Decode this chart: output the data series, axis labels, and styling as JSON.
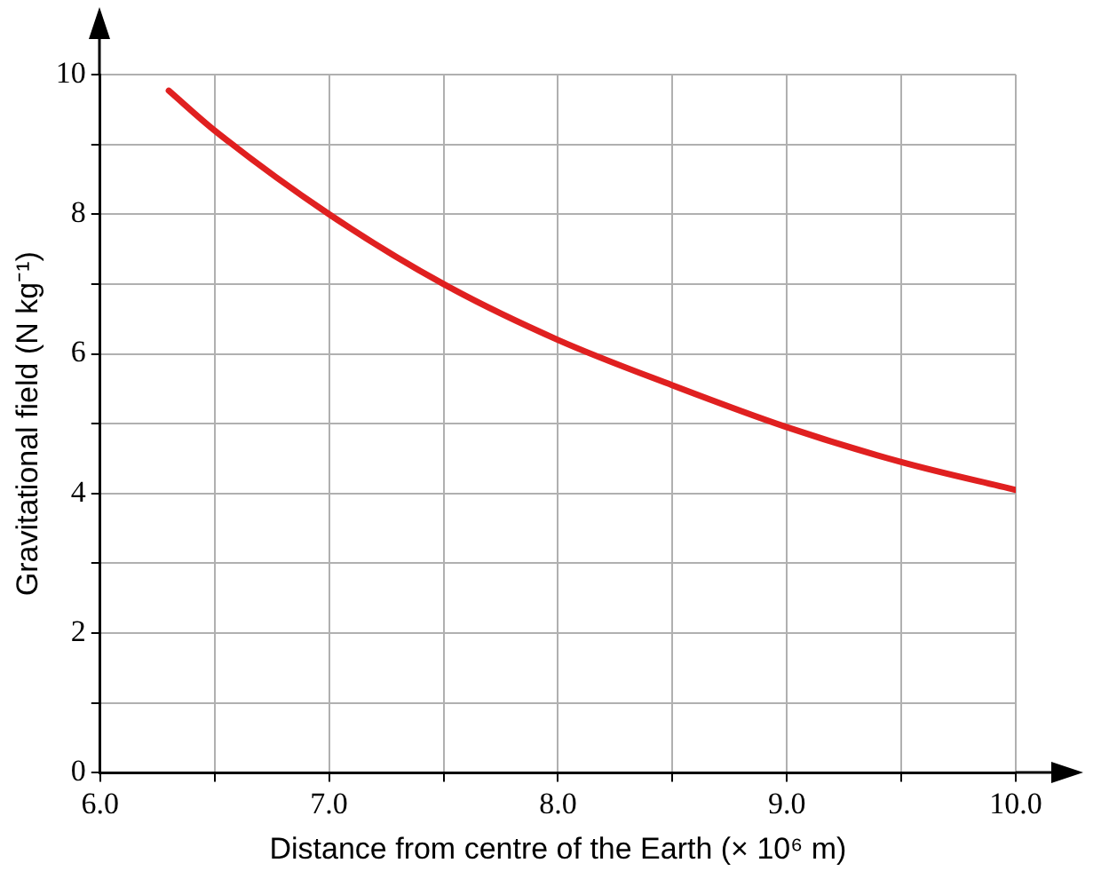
{
  "chart_data": {
    "type": "line",
    "xlabel": "Distance from centre of the Earth (× 10⁶ m)",
    "ylabel": "Gravitational field (N kg⁻¹)",
    "x": [
      6.3,
      6.5,
      7.0,
      7.5,
      8.0,
      8.5,
      9.0,
      9.5,
      10.0
    ],
    "series": [
      {
        "color": "#e02020",
        "values": [
          9.77,
          9.2,
          8.0,
          7.0,
          6.2,
          5.55,
          4.95,
          4.45,
          4.05
        ]
      }
    ],
    "xlim": [
      6,
      10
    ],
    "xticks": [
      {
        "value": 6,
        "label": "6.0"
      },
      {
        "value": 6.5,
        "label": null
      },
      {
        "value": 7,
        "label": "7.0"
      },
      {
        "value": 7.5,
        "label": null
      },
      {
        "value": 8,
        "label": "8.0"
      },
      {
        "value": 8.5,
        "label": null
      },
      {
        "value": 9,
        "label": "9.0"
      },
      {
        "value": 9.5,
        "label": null
      },
      {
        "value": 10,
        "label": "10.0"
      }
    ],
    "ylim": [
      0,
      10
    ],
    "yticks": [
      0,
      {
        "value": 1,
        "label": null
      },
      2,
      {
        "value": 3,
        "label": null
      },
      4,
      {
        "value": 5,
        "label": null
      },
      6,
      {
        "value": 7,
        "label": null
      },
      8,
      {
        "value": 9,
        "label": null
      },
      10
    ],
    "grid": true,
    "legend": false,
    "marker": "none",
    "line_style": "solid"
  }
}
